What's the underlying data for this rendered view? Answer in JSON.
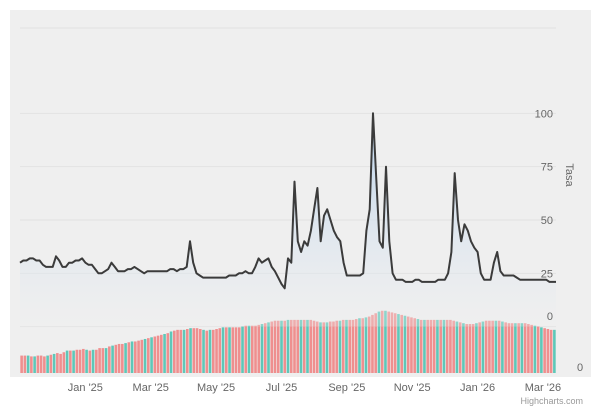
{
  "chart_data": {
    "type": "line",
    "title": "",
    "ylabel": "Tasa",
    "y_ticks": [
      "25",
      "50",
      "75",
      "100"
    ],
    "ylim": [
      -10,
      140
    ],
    "volume_axis_label": "0",
    "volume_max": 100,
    "x_range": [
      0,
      16.4
    ],
    "x_ticks": [
      {
        "label": "Jan '25",
        "value": 2
      },
      {
        "label": "Mar '25",
        "value": 4
      },
      {
        "label": "May '25",
        "value": 6
      },
      {
        "label": "Jul '25",
        "value": 8
      },
      {
        "label": "Sep '25",
        "value": 10
      },
      {
        "label": "Nov '25",
        "value": 12
      },
      {
        "label": "Jan '26",
        "value": 14
      },
      {
        "label": "Mar '26",
        "value": 16
      }
    ],
    "series": [
      {
        "values_x": [
          0.0,
          0.1,
          0.2,
          0.3,
          0.4,
          0.5,
          0.6,
          0.7,
          0.8,
          0.9,
          1.0,
          1.1,
          1.2,
          1.3,
          1.4,
          1.5,
          1.6,
          1.7,
          1.8,
          1.9,
          2.0,
          2.1,
          2.2,
          2.3,
          2.4,
          2.5,
          2.6,
          2.7,
          2.8,
          2.9,
          3.0,
          3.1,
          3.2,
          3.3,
          3.4,
          3.5,
          3.6,
          3.7,
          3.8,
          3.9,
          4.0,
          4.1,
          4.2,
          4.3,
          4.4,
          4.5,
          4.6,
          4.7,
          4.8,
          4.9,
          5.0,
          5.1,
          5.2,
          5.3,
          5.4,
          5.5,
          5.6,
          5.7,
          5.8,
          5.9,
          6.0,
          6.1,
          6.2,
          6.3,
          6.4,
          6.5,
          6.6,
          6.7,
          6.8,
          6.9,
          7.0,
          7.1,
          7.2,
          7.3,
          7.4,
          7.5,
          7.6,
          7.7,
          7.8,
          7.9,
          8.0,
          8.1,
          8.2,
          8.3,
          8.4,
          8.5,
          8.6,
          8.7,
          8.8,
          8.9,
          9.0,
          9.1,
          9.2,
          9.3,
          9.4,
          9.5,
          9.6,
          9.7,
          9.8,
          9.9,
          10.0,
          10.1,
          10.2,
          10.3,
          10.4,
          10.5,
          10.6,
          10.7,
          10.8,
          10.9,
          11.0,
          11.1,
          11.2,
          11.3,
          11.4,
          11.5,
          11.6,
          11.7,
          11.8,
          11.9,
          12.0,
          12.1,
          12.2,
          12.3,
          12.4,
          12.5,
          12.6,
          12.7,
          12.8,
          12.9,
          13.0,
          13.1,
          13.2,
          13.3,
          13.4,
          13.5,
          13.6,
          13.7,
          13.8,
          13.9,
          14.0,
          14.1,
          14.2,
          14.3,
          14.4,
          14.5,
          14.6,
          14.7,
          14.8,
          14.9,
          15.0,
          15.1,
          15.2,
          15.3,
          15.4,
          15.5,
          15.6,
          15.7,
          15.8,
          15.9,
          16.0,
          16.1,
          16.2,
          16.3,
          16.4
        ],
        "values_y": [
          30,
          31,
          31,
          32,
          32,
          31,
          31,
          29,
          28,
          28,
          28,
          33,
          31,
          28,
          28,
          30,
          30,
          31,
          31,
          32,
          30,
          29,
          29,
          27,
          25,
          25,
          26,
          27,
          30,
          28,
          26,
          26,
          26,
          27,
          27,
          28,
          27,
          26,
          25,
          26,
          26,
          26,
          26,
          26,
          26,
          26,
          27,
          27,
          26,
          27,
          27,
          28,
          40,
          30,
          25,
          24,
          23,
          23,
          23,
          23,
          23,
          23,
          23,
          23,
          24,
          24,
          24,
          25,
          25,
          26,
          25,
          25,
          28,
          32,
          30,
          31,
          32,
          28,
          26,
          23,
          20,
          18,
          32,
          30,
          68,
          40,
          35,
          40,
          38,
          45,
          55,
          65,
          40,
          52,
          55,
          50,
          45,
          42,
          40,
          30,
          24,
          24,
          24,
          24,
          24,
          25,
          45,
          55,
          100,
          70,
          40,
          37,
          75,
          40,
          25,
          22,
          22,
          22,
          21,
          21,
          21,
          22,
          22,
          21,
          21,
          21,
          21,
          21,
          22,
          22,
          22,
          25,
          35,
          72,
          50,
          40,
          48,
          45,
          40,
          37,
          35,
          25,
          22,
          22,
          22,
          30,
          35,
          26,
          24,
          24,
          24,
          24,
          23,
          22,
          22,
          22,
          22,
          22,
          22,
          22,
          22,
          22,
          21,
          21,
          21
        ]
      }
    ],
    "volume": {
      "values": [
        21,
        21,
        21,
        20,
        20,
        21,
        21,
        20,
        21,
        22,
        23,
        24,
        23,
        25,
        27,
        27,
        27,
        28,
        28,
        29,
        28,
        27,
        28,
        28,
        30,
        30,
        30,
        32,
        33,
        34,
        35,
        35,
        36,
        37,
        38,
        38,
        39,
        40,
        41,
        42,
        43,
        44,
        45,
        46,
        47,
        48,
        50,
        51,
        52,
        52,
        52,
        53,
        54,
        54,
        54,
        53,
        52,
        51,
        52,
        52,
        53,
        54,
        55,
        55,
        55,
        55,
        55,
        55,
        56,
        57,
        57,
        57,
        57,
        58,
        59,
        60,
        61,
        62,
        63,
        63,
        63,
        63,
        64,
        64,
        64,
        64,
        64,
        64,
        64,
        64,
        63,
        62,
        61,
        61,
        61,
        62,
        62,
        63,
        63,
        64,
        64,
        64,
        64,
        65,
        66,
        66,
        67,
        68,
        70,
        72,
        74,
        75,
        75,
        74,
        73,
        72,
        71,
        70,
        69,
        68,
        67,
        66,
        65,
        64,
        64,
        64,
        64,
        64,
        64,
        64,
        64,
        64,
        64,
        63,
        62,
        61,
        60,
        59,
        59,
        59,
        60,
        61,
        62,
        63,
        63,
        63,
        63,
        63,
        62,
        61,
        60,
        60,
        60,
        60,
        60,
        60,
        59,
        58,
        57,
        56,
        55,
        54,
        53,
        52,
        52
      ],
      "colors": [
        "up",
        "down"
      ]
    },
    "colors": {
      "background": "#efefef",
      "line": "#3b3b3b",
      "area_top": "#b9d3ee",
      "area_bottom": "#efefef",
      "bar_up": "#5ec7b8",
      "bar_down": "#ef8f8f",
      "grid": "#e2e2e2",
      "tick_text": "#666666"
    },
    "grid": true,
    "legend": "none"
  },
  "credits": "Highcharts.com"
}
